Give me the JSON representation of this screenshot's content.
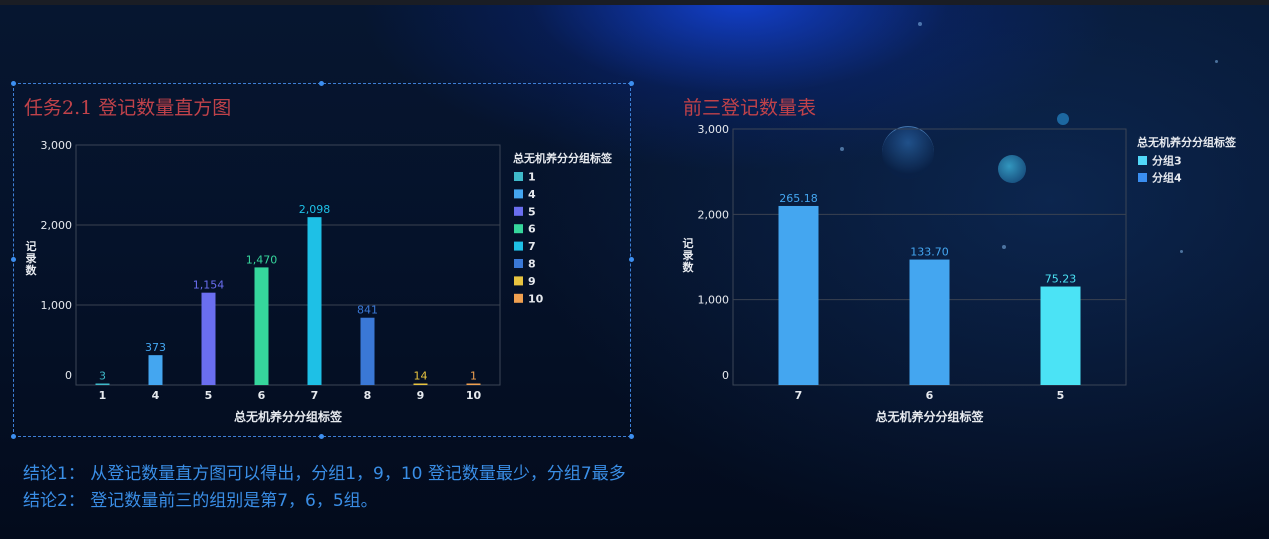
{
  "left_panel": {
    "title": "任务2.1 登记数量直方图"
  },
  "right_panel": {
    "title": "前三登记数量表"
  },
  "conclusions": {
    "c1": "结论1： 从登记数量直方图可以得出，分组1，9，10 登记数量最少，分组7最多",
    "c2": "结论2： 登记数量前三的组别是第7，6，5组。"
  },
  "chart_data": [
    {
      "type": "bar",
      "xlabel": "总无机养分分组标签",
      "ylabel": "记录数",
      "ylim": [
        0,
        3000
      ],
      "yticks": [
        "0",
        "1,000",
        "2,000",
        "3,000"
      ],
      "grid": true,
      "legend_title": "总无机养分分组标签",
      "legend_position": "right",
      "categories": [
        "1",
        "4",
        "5",
        "6",
        "7",
        "8",
        "9",
        "10"
      ],
      "values": [
        3,
        373,
        1154,
        1470,
        2098,
        841,
        14,
        1
      ],
      "data_labels": [
        "3",
        "373",
        "1,154",
        "1,470",
        "2,098",
        "841",
        "14",
        "1"
      ],
      "colors": [
        "#3fb9c9",
        "#44a6f0",
        "#6a6ef0",
        "#36d69c",
        "#1ec0e6",
        "#3a78d6",
        "#e8c440",
        "#f0a050"
      ]
    },
    {
      "type": "bar",
      "xlabel": "总无机养分分组标签",
      "ylabel": "记录数",
      "ylim": [
        0,
        3000
      ],
      "yticks": [
        "0",
        "1,000",
        "2,000",
        "3,000"
      ],
      "grid": true,
      "legend_title": "总无机养分分组标签",
      "legend_position": "right",
      "legend": [
        {
          "name": "分组3",
          "color": "#52d8f8"
        },
        {
          "name": "分组4",
          "color": "#3a8ef0"
        }
      ],
      "categories": [
        "7",
        "6",
        "5"
      ],
      "values": [
        2098,
        1470,
        1154
      ],
      "data_labels": [
        "265.18",
        "133.70",
        "75.23"
      ],
      "colors": [
        "#44a6f0",
        "#44a6f0",
        "#4be3f5"
      ]
    }
  ]
}
